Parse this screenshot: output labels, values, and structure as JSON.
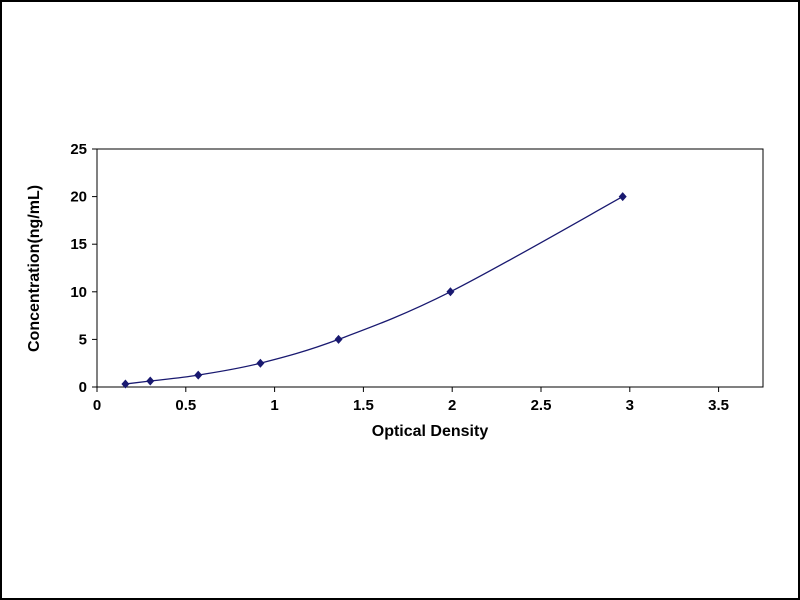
{
  "page": {
    "background": "#ffffff",
    "border_color": "#000000"
  },
  "chart_data": {
    "type": "line",
    "title": "",
    "xlabel": "Optical Density",
    "ylabel": "Concentration(ng/mL)",
    "x": [
      0.16,
      0.3,
      0.57,
      0.92,
      1.36,
      1.99,
      2.96
    ],
    "y": [
      0.31,
      0.63,
      1.25,
      2.5,
      5,
      10,
      20
    ],
    "xlim": [
      0,
      3.75
    ],
    "ylim": [
      0,
      25
    ],
    "x_ticks": [
      0,
      0.5,
      1,
      1.5,
      2,
      2.5,
      3,
      3.5
    ],
    "y_ticks": [
      0,
      5,
      10,
      15,
      20,
      25
    ],
    "grid": false,
    "legend": false,
    "line_color": "#191970",
    "marker": "diamond",
    "marker_color": "#191970",
    "axis_color": "#000000"
  }
}
